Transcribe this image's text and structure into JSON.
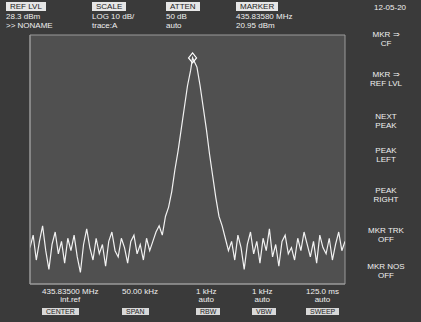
{
  "chart_data": {
    "type": "line",
    "grid": true,
    "tick_labels": false,
    "xlim": [
      435.81,
      435.86
    ],
    "xticks": [
      435.81,
      435.815,
      435.82,
      435.825,
      435.83,
      435.835,
      435.84,
      435.845,
      435.85,
      435.855,
      435.86
    ],
    "ylim": [
      -51.7,
      28.3
    ],
    "yticks": [
      -51.7,
      -41.7,
      -31.7,
      -21.7,
      -11.7,
      -1.7,
      8.3,
      18.3,
      28.3
    ],
    "marker": "diamond",
    "x": [
      435.81,
      435.8105,
      435.811,
      435.8115,
      435.812,
      435.8125,
      435.813,
      435.8135,
      435.814,
      435.8145,
      435.815,
      435.8155,
      435.816,
      435.8165,
      435.817,
      435.8175,
      435.818,
      435.8185,
      435.819,
      435.8195,
      435.82,
      435.8205,
      435.821,
      435.8215,
      435.822,
      435.8225,
      435.823,
      435.8235,
      435.824,
      435.8245,
      435.825,
      435.8255,
      435.826,
      435.8265,
      435.827,
      435.8275,
      435.828,
      435.8285,
      435.829,
      435.8295,
      435.83,
      435.8305,
      435.831,
      435.8315,
      435.832,
      435.8325,
      435.833,
      435.8335,
      435.834,
      435.8345,
      435.835,
      435.8355,
      435.8358,
      435.8365,
      435.837,
      435.8375,
      435.838,
      435.8385,
      435.839,
      435.8395,
      435.84,
      435.8405,
      435.841,
      435.8415,
      435.842,
      435.8425,
      435.843,
      435.8435,
      435.844,
      435.8445,
      435.845,
      435.8455,
      435.846,
      435.8465,
      435.847,
      435.8475,
      435.848,
      435.8485,
      435.849,
      435.8495,
      435.85,
      435.8505,
      435.851,
      435.8515,
      435.852,
      435.8525,
      435.853,
      435.8535,
      435.854,
      435.8545,
      435.855,
      435.8555,
      435.856,
      435.8565,
      435.857,
      435.8575,
      435.858,
      435.8585,
      435.859,
      435.8595,
      435.86
    ],
    "series": [
      {
        "name": "trace:A",
        "color": "#f2f2f2",
        "values": [
          -40,
          -36,
          -44,
          -38,
          -33,
          -41,
          -47,
          -39,
          -35,
          -42,
          -38,
          -45,
          -37,
          -41,
          -36,
          -43,
          -48,
          -39,
          -34,
          -40,
          -44,
          -37,
          -42,
          -39,
          -46,
          -38,
          -35,
          -41,
          -43,
          -37,
          -40,
          -45,
          -38,
          -36,
          -42,
          -39,
          -44,
          -37,
          -41,
          -38,
          -35,
          -33,
          -36,
          -30,
          -27,
          -22,
          -15,
          -9,
          -2,
          5,
          12,
          17,
          20.95,
          18,
          12,
          5,
          -2,
          -10,
          -17,
          -24,
          -30,
          -33,
          -37,
          -41,
          -38,
          -44,
          -36,
          -40,
          -47,
          -39,
          -35,
          -42,
          -38,
          -45,
          -37,
          -41,
          -34,
          -43,
          -39,
          -46,
          -38,
          -36,
          -42,
          -40,
          -44,
          -37,
          -41,
          -35,
          -39,
          -43,
          -38,
          -45,
          -36,
          -40,
          -42,
          -37,
          -44,
          -39,
          -35,
          -41,
          -38
        ]
      }
    ]
  },
  "header": [
    {
      "box": "REF LVL",
      "lines": [
        "28.3 dBm",
        ">> NONAME"
      ]
    },
    {
      "box": "SCALE",
      "lines": [
        "LOG 10 dB/",
        "trace:A"
      ]
    },
    {
      "box": "ATTEN",
      "lines": [
        "50 dB",
        "auto"
      ]
    },
    {
      "box": "MARKER",
      "lines": [
        "435.83580 MHz",
        "20.95 dBm"
      ]
    }
  ],
  "date": "12-05-20",
  "footer": [
    {
      "lines": [
        "435.83500 MHz",
        "int.ref"
      ],
      "key": "CENTER"
    },
    {
      "lines": [
        "50.00 kHz"
      ],
      "key": "SPAN"
    },
    {
      "lines": [
        "1 kHz",
        "auto"
      ],
      "key": "RBW"
    },
    {
      "lines": [
        "1 kHz",
        "auto"
      ],
      "key": "VBW"
    },
    {
      "lines": [
        "125.0 ms",
        "auto"
      ],
      "key": "SWEEP"
    }
  ],
  "softkeys": [
    [
      "MKR ⇒",
      "CF"
    ],
    [
      "MKR ⇒",
      "REF LVL"
    ],
    [
      "NEXT",
      "PEAK"
    ],
    [
      "PEAK",
      "LEFT"
    ],
    [
      "PEAK",
      "RIGHT"
    ],
    [
      "MKR TRK",
      "OFF"
    ],
    [
      "MKR NOS",
      "OFF"
    ]
  ]
}
